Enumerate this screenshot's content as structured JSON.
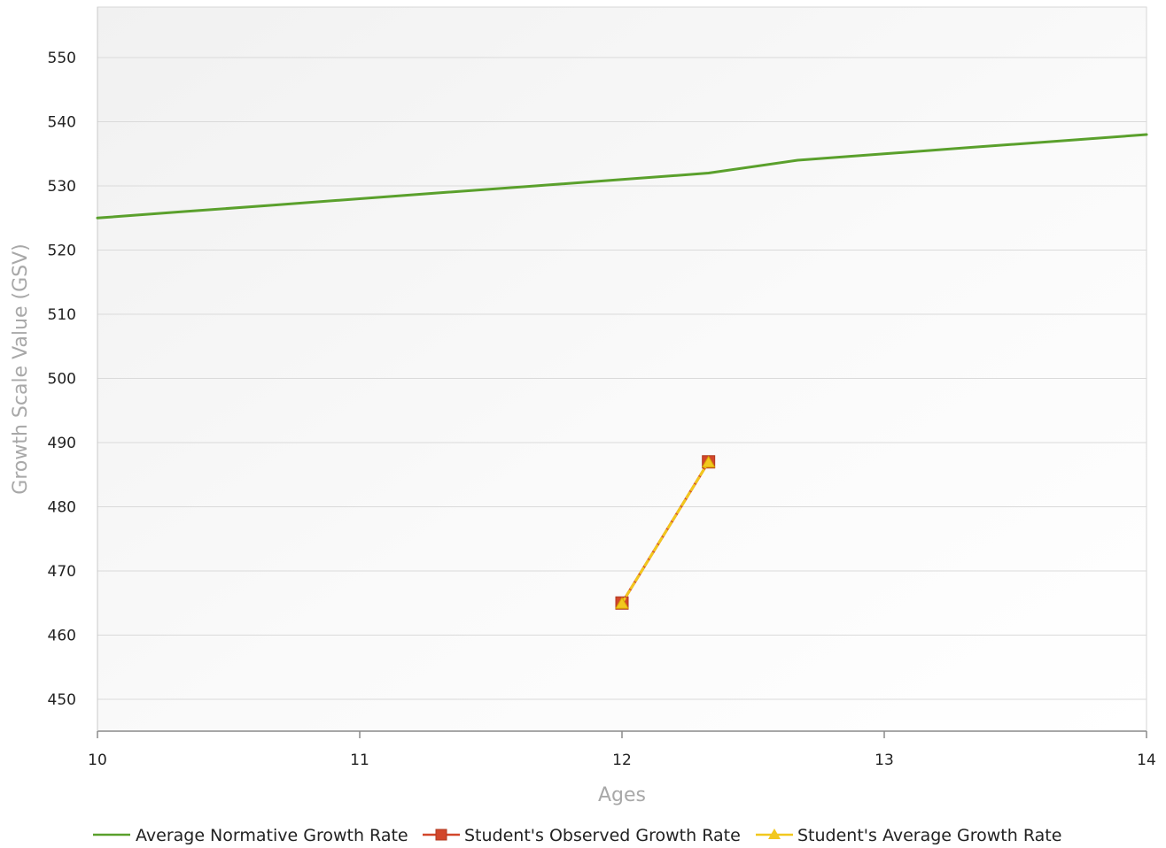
{
  "chart_data": {
    "type": "line",
    "xlabel": "Ages",
    "ylabel": "Growth Scale Value (GSV)",
    "xlim": [
      10,
      14
    ],
    "ylim": [
      445,
      555
    ],
    "x_ticks": [
      10,
      11,
      12,
      13,
      14
    ],
    "y_ticks": [
      450,
      460,
      470,
      480,
      490,
      500,
      510,
      520,
      530,
      540,
      550
    ],
    "grid": "horizontal",
    "legend_position": "bottom",
    "series": [
      {
        "name": "Average Normative Growth Rate",
        "color": "#5aa02c",
        "marker": "none",
        "x": [
          10,
          10.33,
          10.67,
          11,
          11.33,
          11.67,
          12,
          12.33,
          12.67,
          13,
          13.33,
          13.67,
          14
        ],
        "y": [
          525,
          526,
          527,
          528,
          529,
          530,
          531,
          532,
          534,
          535,
          536,
          537,
          538
        ]
      },
      {
        "name": "Student's Observed Growth Rate",
        "color": "#d2472b",
        "marker": "square",
        "x": [
          12,
          12.33
        ],
        "y": [
          465,
          487
        ]
      },
      {
        "name": "Student's Average Growth Rate",
        "color": "#f2c81e",
        "marker": "triangle",
        "x": [
          12,
          12.33
        ],
        "y": [
          465,
          487
        ]
      }
    ]
  }
}
